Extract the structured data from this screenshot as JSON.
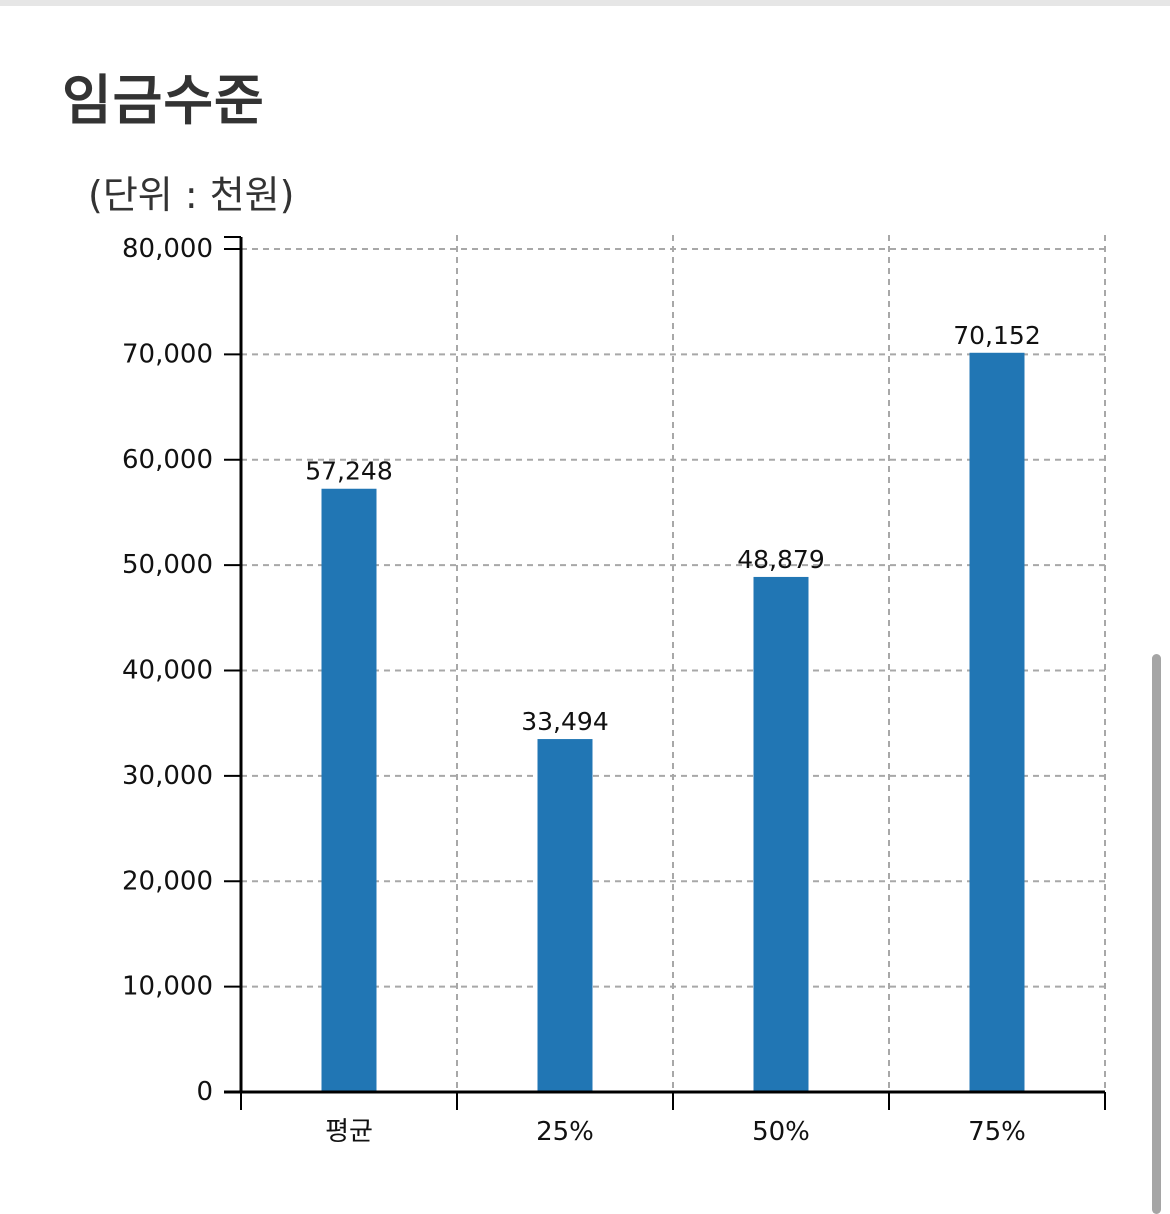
{
  "header": {
    "title": "임금수준"
  },
  "chart_data": {
    "type": "bar",
    "unit_label": "(단위 : 천원)",
    "categories": [
      "평균",
      "25%",
      "50%",
      "75%"
    ],
    "values": [
      57248,
      33494,
      48879,
      70152
    ],
    "value_labels": [
      "57,248",
      "33,494",
      "48,879",
      "70,152"
    ],
    "y_ticks": [
      0,
      10000,
      20000,
      30000,
      40000,
      50000,
      60000,
      70000,
      80000
    ],
    "y_tick_labels": [
      "0",
      "10,000",
      "20,000",
      "30,000",
      "40,000",
      "50,000",
      "60,000",
      "70,000",
      "80,000"
    ],
    "ylim": [
      0,
      80000
    ],
    "grid": true,
    "grid_style": "dashed",
    "legend": "none",
    "colors": {
      "bar": "#2176b4",
      "grid": "#a8a8a8",
      "axis": "#000000"
    }
  }
}
